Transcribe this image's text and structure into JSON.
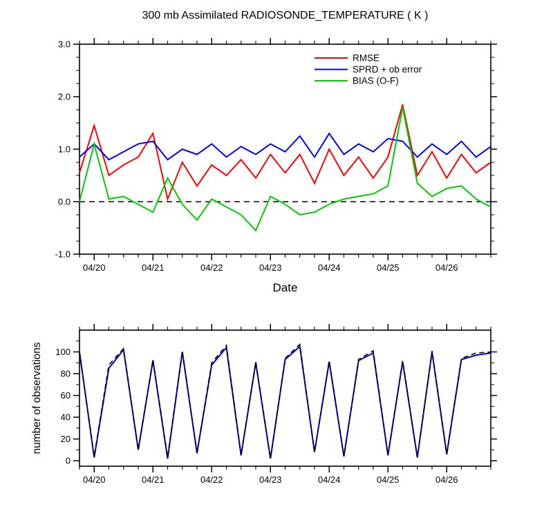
{
  "figure": {
    "background": "#ffffff",
    "accent_colors": {
      "rmse": "#ff0000",
      "sprd": "#0000ff",
      "bias": "#00cc00",
      "obs": "#0000cc",
      "reference": "#000000"
    }
  },
  "chart_data": [
    {
      "type": "line",
      "title": "300 mb Assimilated RADIOSONDE_TEMPERATURE ( K )",
      "xlabel": "Date",
      "ylabel": "",
      "ylim": [
        -1.0,
        3.0
      ],
      "yticks": [
        -1.0,
        0.0,
        1.0,
        2.0,
        3.0
      ],
      "ytick_labels": [
        "-1.0",
        "0.0",
        "1.0",
        "2.0",
        "3.0"
      ],
      "y_minor_step": 0.25,
      "x_tick_labels": [
        "04/20",
        "04/21",
        "04/22",
        "04/23",
        "04/24",
        "04/25",
        "04/26"
      ],
      "x_tick_indices": [
        1,
        5,
        9,
        13,
        17,
        21,
        25
      ],
      "x_points_per_day": 4,
      "grid": false,
      "zero_reference_line": true,
      "legend": {
        "position": "top-right",
        "entries": [
          "RMSE",
          "SPRD + ob error",
          "BIAS (O-F)"
        ]
      },
      "series": [
        {
          "name": "RMSE",
          "color": "#ff0000",
          "style": "solid",
          "values": [
            0.55,
            1.45,
            0.5,
            0.7,
            0.85,
            1.3,
            0.05,
            0.75,
            0.3,
            0.7,
            0.5,
            0.8,
            0.45,
            0.9,
            0.55,
            0.9,
            0.35,
            1.0,
            0.5,
            0.85,
            0.45,
            0.85,
            1.85,
            0.5,
            0.95,
            0.45,
            0.9,
            0.55,
            0.75
          ]
        },
        {
          "name": "SPRD + ob error",
          "color": "#0000ff",
          "style": "solid",
          "values": [
            0.85,
            1.1,
            0.8,
            0.95,
            1.1,
            1.15,
            0.8,
            1.0,
            0.9,
            1.1,
            0.85,
            1.05,
            0.9,
            1.1,
            0.95,
            1.25,
            0.85,
            1.3,
            0.9,
            1.1,
            0.95,
            1.2,
            1.15,
            0.85,
            1.1,
            0.9,
            1.15,
            0.85,
            1.05
          ]
        },
        {
          "name": "BIAS (O-F)",
          "color": "#00cc00",
          "style": "solid",
          "values": [
            0.0,
            1.1,
            0.05,
            0.1,
            -0.05,
            -0.2,
            0.45,
            -0.05,
            -0.35,
            0.05,
            -0.1,
            -0.25,
            -0.55,
            0.1,
            -0.05,
            -0.25,
            -0.2,
            -0.05,
            0.05,
            0.1,
            0.15,
            0.3,
            1.8,
            0.35,
            0.1,
            0.25,
            0.3,
            0.05,
            -0.1
          ]
        }
      ]
    },
    {
      "type": "line",
      "title": "",
      "xlabel": "",
      "ylabel": "number of observations",
      "ylim": [
        0,
        110
      ],
      "yticks": [
        0,
        20,
        40,
        60,
        80,
        100
      ],
      "ytick_labels": [
        "0",
        "20",
        "40",
        "60",
        "80",
        "100"
      ],
      "y_minor_step": 10,
      "x_tick_labels": [
        "04/20",
        "04/21",
        "04/22",
        "04/23",
        "04/24",
        "04/25",
        "04/26"
      ],
      "x_tick_indices": [
        1,
        5,
        9,
        13,
        17,
        21,
        25
      ],
      "x_points_per_day": 4,
      "grid": false,
      "zero_reference_line": false,
      "legend": null,
      "series": [
        {
          "name": "number of observations",
          "color": "#0000cc",
          "style": "solid",
          "values": [
            100,
            3,
            85,
            102,
            10,
            92,
            2,
            100,
            7,
            88,
            104,
            5,
            90,
            2,
            93,
            105,
            8,
            91,
            4,
            92,
            99,
            5,
            91,
            3,
            100,
            6,
            93,
            97,
            99
          ]
        },
        {
          "name": "number of observations (dashed)",
          "color": "#000000",
          "style": "dashed",
          "values": [
            100,
            4,
            88,
            103,
            10,
            93,
            3,
            101,
            7,
            90,
            106,
            5,
            91,
            2,
            94,
            107,
            8,
            92,
            4,
            93,
            101,
            5,
            92,
            3,
            101,
            6,
            94,
            99,
            100
          ]
        }
      ]
    }
  ]
}
